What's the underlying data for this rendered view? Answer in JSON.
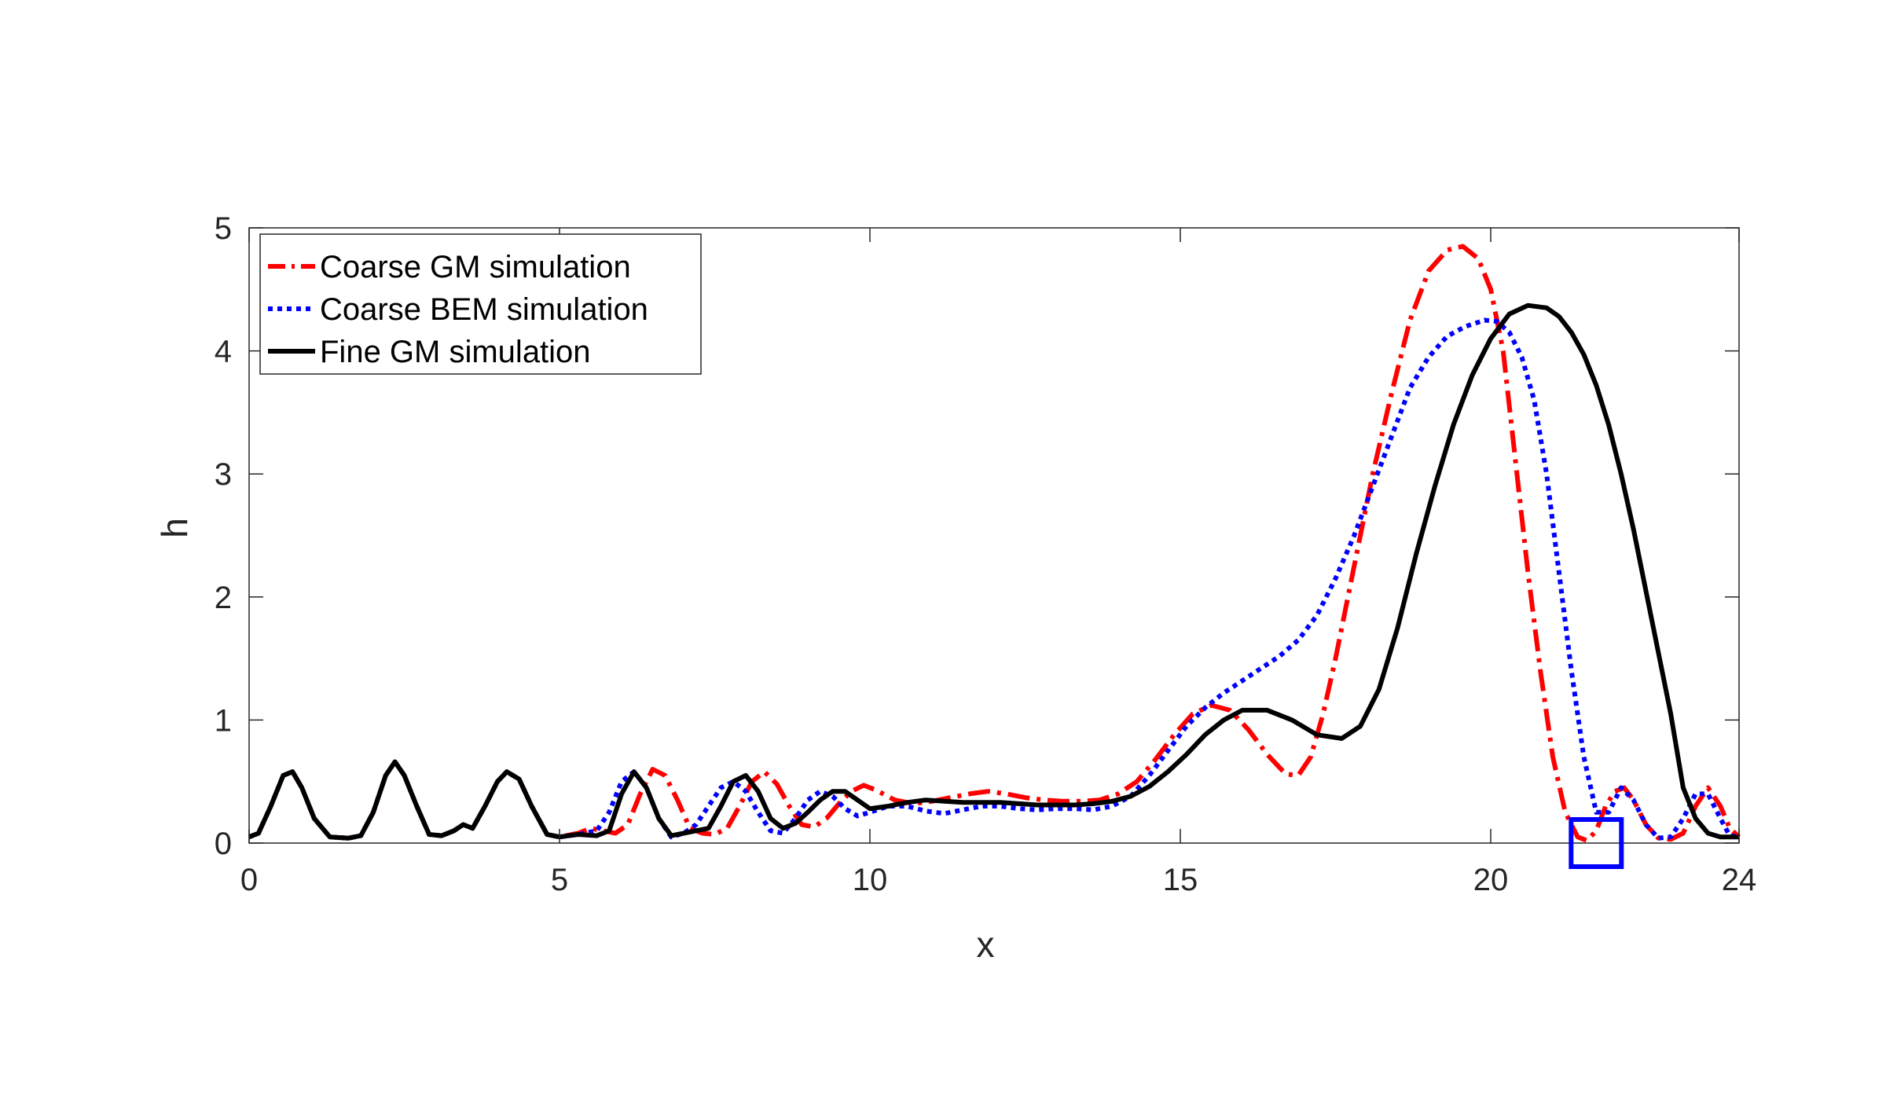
{
  "chart_data": {
    "type": "line",
    "title": "",
    "xlabel": "x",
    "ylabel": "h",
    "xlim": [
      0,
      24
    ],
    "ylim": [
      0,
      5
    ],
    "x_ticks": [
      0,
      5,
      10,
      15,
      20,
      24
    ],
    "y_ticks": [
      0,
      1,
      2,
      3,
      4,
      5
    ],
    "grid": false,
    "legend_position": "top-left",
    "series": [
      {
        "name": "Coarse GM simulation",
        "color": "#ff0000",
        "line_style": "dash-dot",
        "x": [
          0,
          0.15,
          0.35,
          0.55,
          0.7,
          0.85,
          1.05,
          1.3,
          1.6,
          1.8,
          2.0,
          2.2,
          2.35,
          2.5,
          2.7,
          2.9,
          3.1,
          3.3,
          3.45,
          3.6,
          3.8,
          4.0,
          4.15,
          4.35,
          4.55,
          4.8,
          5.0,
          5.3,
          5.5,
          5.7,
          5.9,
          6.1,
          6.3,
          6.5,
          6.7,
          6.9,
          7.1,
          7.3,
          7.5,
          7.7,
          7.9,
          8.1,
          8.3,
          8.5,
          8.7,
          8.9,
          9.1,
          9.3,
          9.5,
          9.7,
          9.9,
          10.1,
          10.4,
          10.7,
          11.0,
          11.3,
          11.6,
          11.9,
          12.2,
          12.5,
          12.8,
          13.1,
          13.4,
          13.7,
          14.0,
          14.3,
          14.6,
          14.9,
          15.2,
          15.5,
          15.8,
          16.1,
          16.4,
          16.7,
          16.9,
          17.1,
          17.3,
          17.5,
          17.7,
          17.9,
          18.1,
          18.4,
          18.7,
          19.0,
          19.3,
          19.55,
          19.8,
          20.0,
          20.2,
          20.4,
          20.6,
          20.8,
          21.0,
          21.2,
          21.4,
          21.55,
          21.7,
          21.85,
          22.0,
          22.15,
          22.3,
          22.5,
          22.7,
          22.9,
          23.1,
          23.3,
          23.5,
          23.7,
          23.85,
          24.0
        ],
        "y": [
          0.05,
          0.08,
          0.3,
          0.55,
          0.58,
          0.45,
          0.2,
          0.05,
          0.04,
          0.06,
          0.25,
          0.55,
          0.66,
          0.55,
          0.3,
          0.07,
          0.06,
          0.1,
          0.15,
          0.12,
          0.3,
          0.5,
          0.58,
          0.52,
          0.3,
          0.07,
          0.05,
          0.08,
          0.12,
          0.1,
          0.08,
          0.15,
          0.4,
          0.6,
          0.55,
          0.35,
          0.12,
          0.08,
          0.07,
          0.12,
          0.3,
          0.5,
          0.58,
          0.48,
          0.3,
          0.15,
          0.13,
          0.2,
          0.32,
          0.42,
          0.47,
          0.43,
          0.35,
          0.32,
          0.34,
          0.37,
          0.4,
          0.42,
          0.4,
          0.37,
          0.35,
          0.34,
          0.34,
          0.35,
          0.4,
          0.5,
          0.68,
          0.88,
          1.05,
          1.12,
          1.08,
          0.92,
          0.72,
          0.56,
          0.55,
          0.7,
          1.05,
          1.5,
          2.0,
          2.5,
          3.0,
          3.65,
          4.25,
          4.65,
          4.82,
          4.85,
          4.75,
          4.5,
          4.0,
          3.1,
          2.2,
          1.4,
          0.7,
          0.25,
          0.05,
          0.02,
          0.1,
          0.3,
          0.42,
          0.45,
          0.35,
          0.15,
          0.04,
          0.03,
          0.08,
          0.3,
          0.45,
          0.3,
          0.12,
          0.05
        ]
      },
      {
        "name": "Coarse BEM simulation",
        "color": "#0000ff",
        "line_style": "dotted",
        "x": [
          0,
          0.15,
          0.35,
          0.55,
          0.7,
          0.85,
          1.05,
          1.3,
          1.6,
          1.8,
          2.0,
          2.2,
          2.35,
          2.5,
          2.7,
          2.9,
          3.1,
          3.3,
          3.45,
          3.6,
          3.8,
          4.0,
          4.15,
          4.35,
          4.55,
          4.8,
          5.0,
          5.3,
          5.6,
          5.8,
          6.0,
          6.2,
          6.4,
          6.6,
          6.8,
          7.0,
          7.2,
          7.4,
          7.6,
          7.8,
          8.0,
          8.2,
          8.4,
          8.6,
          8.8,
          9.0,
          9.2,
          9.4,
          9.6,
          9.8,
          10.0,
          10.3,
          10.6,
          10.9,
          11.2,
          11.5,
          11.8,
          12.1,
          12.4,
          12.7,
          13.0,
          13.3,
          13.6,
          13.9,
          14.2,
          14.5,
          14.8,
          15.1,
          15.4,
          15.7,
          16.0,
          16.3,
          16.6,
          16.9,
          17.2,
          17.5,
          17.8,
          18.1,
          18.4,
          18.7,
          19.0,
          19.3,
          19.6,
          19.9,
          20.1,
          20.3,
          20.5,
          20.7,
          20.9,
          21.1,
          21.3,
          21.5,
          21.7,
          21.9,
          22.1,
          22.3,
          22.5,
          22.7,
          22.9,
          23.1,
          23.3,
          23.5,
          23.7,
          23.85,
          24.0
        ],
        "y": [
          0.05,
          0.08,
          0.3,
          0.55,
          0.58,
          0.45,
          0.2,
          0.05,
          0.04,
          0.06,
          0.25,
          0.55,
          0.66,
          0.55,
          0.3,
          0.07,
          0.06,
          0.1,
          0.15,
          0.12,
          0.3,
          0.5,
          0.58,
          0.52,
          0.3,
          0.07,
          0.05,
          0.07,
          0.1,
          0.25,
          0.5,
          0.58,
          0.45,
          0.2,
          0.05,
          0.08,
          0.15,
          0.3,
          0.45,
          0.5,
          0.42,
          0.25,
          0.1,
          0.08,
          0.2,
          0.35,
          0.42,
          0.38,
          0.28,
          0.22,
          0.25,
          0.3,
          0.3,
          0.26,
          0.24,
          0.27,
          0.3,
          0.3,
          0.28,
          0.27,
          0.28,
          0.28,
          0.27,
          0.3,
          0.38,
          0.55,
          0.75,
          0.95,
          1.1,
          1.22,
          1.32,
          1.42,
          1.52,
          1.65,
          1.85,
          2.15,
          2.5,
          2.9,
          3.3,
          3.7,
          3.95,
          4.12,
          4.2,
          4.25,
          4.24,
          4.15,
          3.95,
          3.6,
          3.0,
          2.2,
          1.4,
          0.7,
          0.25,
          0.25,
          0.45,
          0.35,
          0.15,
          0.04,
          0.05,
          0.2,
          0.4,
          0.4,
          0.2,
          0.06,
          0.05
        ]
      },
      {
        "name": "Fine GM simulation",
        "color": "#000000",
        "line_style": "solid",
        "x": [
          0,
          0.15,
          0.35,
          0.55,
          0.7,
          0.85,
          1.05,
          1.3,
          1.6,
          1.8,
          2.0,
          2.2,
          2.35,
          2.5,
          2.7,
          2.9,
          3.1,
          3.3,
          3.45,
          3.6,
          3.8,
          4.0,
          4.15,
          4.35,
          4.55,
          4.8,
          5.0,
          5.3,
          5.6,
          5.8,
          6.0,
          6.2,
          6.4,
          6.6,
          6.8,
          7.0,
          7.2,
          7.4,
          7.6,
          7.8,
          8.0,
          8.2,
          8.4,
          8.6,
          8.8,
          9.0,
          9.2,
          9.4,
          9.6,
          9.8,
          10.0,
          10.3,
          10.6,
          10.9,
          11.2,
          11.5,
          11.8,
          12.1,
          12.4,
          12.7,
          13.0,
          13.3,
          13.6,
          13.9,
          14.2,
          14.5,
          14.8,
          15.1,
          15.4,
          15.7,
          16.0,
          16.4,
          16.8,
          17.2,
          17.6,
          17.9,
          18.2,
          18.5,
          18.8,
          19.1,
          19.4,
          19.7,
          20.0,
          20.3,
          20.6,
          20.9,
          21.1,
          21.3,
          21.5,
          21.7,
          21.9,
          22.1,
          22.3,
          22.5,
          22.7,
          22.9,
          23.1,
          23.3,
          23.5,
          23.7,
          23.85,
          24.0
        ],
        "y": [
          0.05,
          0.08,
          0.3,
          0.55,
          0.58,
          0.45,
          0.2,
          0.05,
          0.04,
          0.06,
          0.25,
          0.55,
          0.66,
          0.55,
          0.3,
          0.07,
          0.06,
          0.1,
          0.15,
          0.12,
          0.3,
          0.5,
          0.58,
          0.52,
          0.3,
          0.07,
          0.05,
          0.07,
          0.06,
          0.1,
          0.4,
          0.58,
          0.45,
          0.2,
          0.06,
          0.08,
          0.1,
          0.12,
          0.3,
          0.5,
          0.55,
          0.42,
          0.2,
          0.12,
          0.16,
          0.25,
          0.35,
          0.42,
          0.42,
          0.35,
          0.28,
          0.3,
          0.33,
          0.35,
          0.34,
          0.33,
          0.33,
          0.33,
          0.32,
          0.31,
          0.31,
          0.31,
          0.32,
          0.34,
          0.38,
          0.46,
          0.58,
          0.72,
          0.88,
          1.0,
          1.08,
          1.08,
          1.0,
          0.88,
          0.85,
          0.95,
          1.25,
          1.75,
          2.35,
          2.9,
          3.4,
          3.8,
          4.1,
          4.3,
          4.37,
          4.35,
          4.28,
          4.15,
          3.97,
          3.72,
          3.4,
          3.0,
          2.55,
          2.05,
          1.55,
          1.05,
          0.45,
          0.2,
          0.08,
          0.05,
          0.05,
          0.05
        ]
      }
    ]
  },
  "legend": {
    "items": [
      {
        "label": "Coarse GM simulation",
        "color": "#ff0000"
      },
      {
        "label": "Coarse BEM simulation",
        "color": "#0000ff"
      },
      {
        "label": "Fine GM simulation",
        "color": "#000000"
      }
    ]
  },
  "annotation": {
    "marker_x": 21.7,
    "marker_y": 0,
    "color": "#0000ff"
  }
}
